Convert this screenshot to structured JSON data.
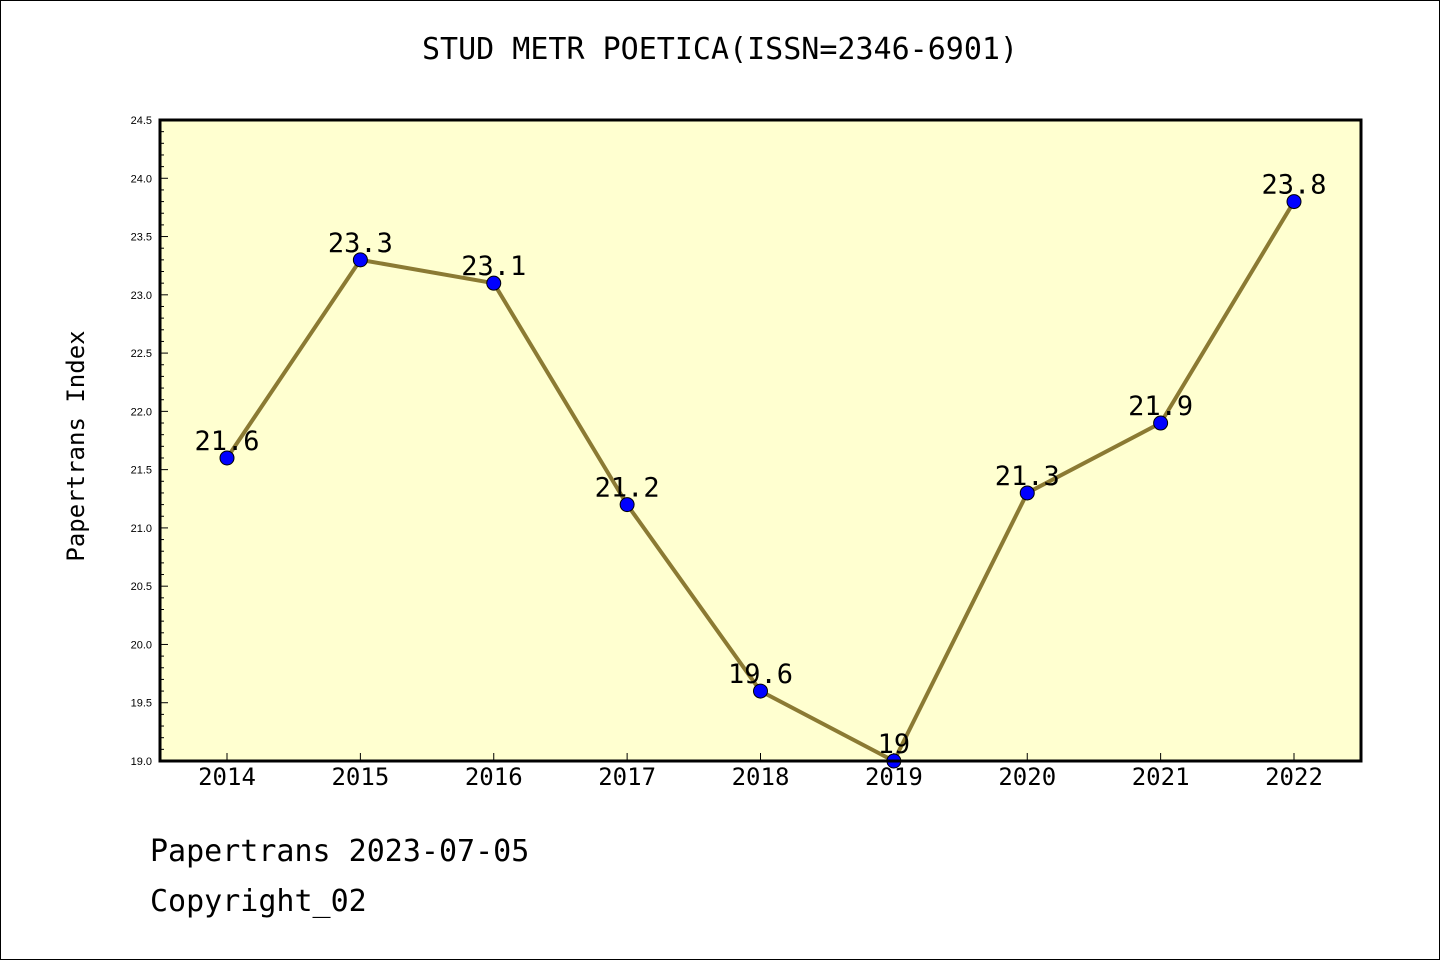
{
  "title": "STUD METR POETICA(ISSN=2346-6901)",
  "footer": {
    "line1": "Papertrans 2023-07-05",
    "line2": "Copyright_02"
  },
  "colors": {
    "plot_background": "#ffffd0",
    "line": "#8b7a33",
    "marker": "#0000ff"
  },
  "chart_data": {
    "type": "line",
    "title": "STUD METR POETICA(ISSN=2346-6901)",
    "xlabel": "",
    "ylabel": "Papertrans Index",
    "categories": [
      "2014",
      "2015",
      "2016",
      "2017",
      "2018",
      "2019",
      "2020",
      "2021",
      "2022"
    ],
    "series": [
      {
        "values": [
          21.6,
          23.3,
          23.1,
          21.2,
          19.6,
          19,
          21.3,
          21.9,
          23.8
        ],
        "data_labels": [
          "21.6",
          "23.3",
          "23.1",
          "21.2",
          "19.6",
          "19",
          "21.3",
          "21.9",
          "23.8"
        ]
      }
    ],
    "ylim": [
      19.0,
      24.5
    ],
    "yticks": [
      "19.0",
      "19.5",
      "20.0",
      "20.5",
      "21.0",
      "21.5",
      "22.0",
      "22.5",
      "23.0",
      "23.5",
      "24.0",
      "24.5"
    ],
    "grid": false,
    "legend": "none"
  }
}
